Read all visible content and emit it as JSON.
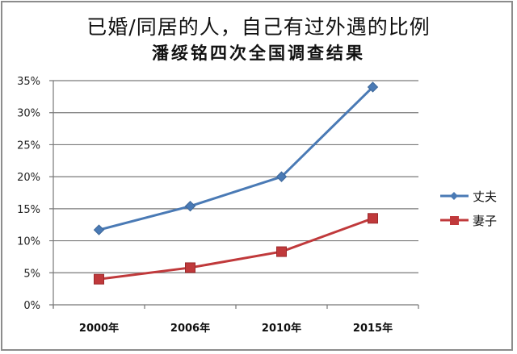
{
  "chart_data": {
    "type": "line",
    "title": "已婚/同居的人，自己有过外遇的比例",
    "subtitle": "潘绥铭四次全国调查结果",
    "xlabel": "",
    "ylabel": "",
    "categories": [
      "2000年",
      "2006年",
      "2010年",
      "2015年"
    ],
    "series": [
      {
        "name": "丈夫",
        "color": "#4a7ab5",
        "marker": "diamond",
        "values": [
          11.7,
          15.4,
          20.0,
          34.0
        ]
      },
      {
        "name": "妻子",
        "color": "#c0393b",
        "marker": "square",
        "values": [
          4.0,
          5.8,
          8.3,
          13.5
        ]
      }
    ],
    "ylim": [
      0,
      35
    ],
    "yticks": [
      "0%",
      "5%",
      "10%",
      "15%",
      "20%",
      "25%",
      "30%",
      "35%"
    ],
    "grid": true,
    "legend_position": "right"
  }
}
